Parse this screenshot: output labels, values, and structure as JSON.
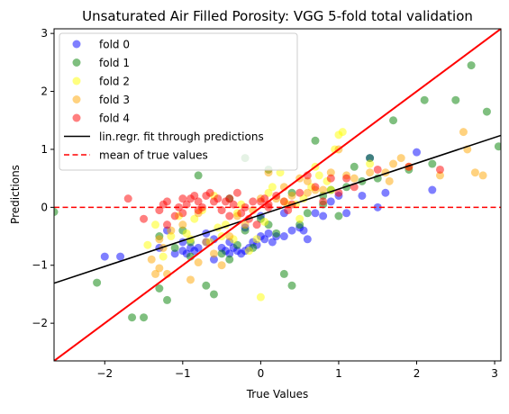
{
  "chart_data": {
    "type": "scatter",
    "title": "Unsaturated Air Filled Porosity: VGG 5-fold total validation",
    "xlabel": "True Values",
    "ylabel": "Predictions",
    "xlim": [
      -2.65,
      3.08
    ],
    "ylim": [
      -2.65,
      3.08
    ],
    "xticks": [
      -2,
      -1,
      0,
      1,
      2,
      3
    ],
    "yticks": [
      -2,
      -1,
      0,
      1,
      2,
      3
    ],
    "tick_labels": [
      "−2",
      "−1",
      "0",
      "1",
      "2",
      "3"
    ],
    "grid": false,
    "legend_placement": "top-left",
    "series": [
      {
        "name": "fold 0",
        "color": "#0000ff",
        "x": [
          -2.0,
          -1.8,
          -1.3,
          -1.2,
          -1.1,
          -1.0,
          -0.95,
          -0.9,
          -0.85,
          -0.8,
          -0.7,
          -0.6,
          -0.5,
          -0.45,
          -0.4,
          -0.35,
          -0.3,
          -0.25,
          -0.2,
          -0.15,
          -0.1,
          -0.05,
          0.0,
          0.05,
          0.1,
          0.15,
          0.2,
          0.3,
          0.4,
          0.5,
          0.55,
          0.6,
          0.7,
          0.8,
          0.9,
          1.0,
          1.1,
          1.3,
          1.4,
          1.5,
          1.6,
          2.0,
          2.2,
          -0.6,
          -0.4,
          -0.2,
          0.3,
          -0.7,
          0.0,
          -1.0
        ],
        "y": [
          -0.85,
          -0.85,
          -0.7,
          -0.4,
          -0.8,
          -0.75,
          -0.8,
          -0.7,
          -0.75,
          -0.7,
          -0.6,
          -0.55,
          -0.7,
          -0.75,
          -0.6,
          -0.7,
          -0.75,
          -0.8,
          -0.75,
          -0.7,
          -0.6,
          -0.65,
          -0.5,
          -0.55,
          -0.45,
          -0.6,
          -0.5,
          -0.5,
          -0.4,
          -0.35,
          -0.4,
          -0.55,
          -0.1,
          -0.15,
          0.1,
          0.2,
          -0.1,
          0.2,
          0.85,
          0.0,
          0.25,
          0.95,
          0.3,
          -0.9,
          -0.8,
          -0.35,
          -0.1,
          -0.45,
          -0.15,
          -0.6
        ]
      },
      {
        "name": "fold 1",
        "color": "#008000",
        "x": [
          -2.65,
          -2.1,
          -1.65,
          -1.5,
          -1.3,
          -1.2,
          -1.1,
          -1.0,
          -0.9,
          -0.8,
          -0.7,
          -0.6,
          -0.5,
          -0.4,
          -0.3,
          -0.2,
          -0.1,
          0.0,
          0.1,
          0.2,
          0.3,
          0.4,
          0.5,
          0.6,
          0.7,
          0.8,
          0.9,
          1.0,
          1.1,
          1.2,
          1.4,
          1.5,
          1.7,
          1.9,
          2.1,
          2.2,
          2.5,
          2.7,
          2.9,
          3.05,
          -0.4,
          0.4,
          -1.3,
          0.1,
          -0.9,
          0.8,
          -0.2,
          1.3
        ],
        "y": [
          -0.08,
          -1.3,
          -1.9,
          -1.9,
          -1.4,
          -1.6,
          -0.7,
          -0.4,
          -0.85,
          0.55,
          -1.35,
          -1.5,
          -0.8,
          -0.9,
          -0.65,
          -0.4,
          -0.7,
          -0.2,
          -0.3,
          -0.45,
          -1.15,
          -1.35,
          -0.3,
          -0.1,
          1.15,
          0.05,
          0.3,
          -0.15,
          0.35,
          0.7,
          0.85,
          0.5,
          1.5,
          0.65,
          1.85,
          0.75,
          1.85,
          2.45,
          1.65,
          1.05,
          0.15,
          0.25,
          -0.5,
          0.65,
          -0.6,
          0.2,
          0.85,
          0.45
        ]
      },
      {
        "name": "fold 2",
        "color": "#ffff00",
        "x": [
          -1.45,
          -1.35,
          -1.25,
          -1.15,
          -1.05,
          -0.95,
          -0.85,
          -0.75,
          -0.65,
          -0.55,
          -0.45,
          -0.35,
          -0.25,
          -0.15,
          -0.05,
          0.0,
          0.05,
          0.15,
          0.25,
          0.35,
          0.45,
          0.55,
          0.65,
          0.75,
          0.85,
          0.95,
          1.0,
          1.05,
          -0.6,
          -0.3,
          0.3,
          0.5,
          -0.9,
          0.1,
          0.7,
          -0.5,
          0.9,
          1.4
        ],
        "y": [
          -0.65,
          -0.3,
          -0.85,
          -0.5,
          -0.15,
          -0.45,
          -0.2,
          -0.05,
          -0.6,
          -0.35,
          -0.3,
          -0.55,
          0.05,
          -0.75,
          -0.55,
          -1.55,
          -0.25,
          0.35,
          0.6,
          0.05,
          0.05,
          0.15,
          0.35,
          0.55,
          0.45,
          1.0,
          1.25,
          1.3,
          0.2,
          -0.1,
          0.1,
          -0.2,
          -0.55,
          0.25,
          0.7,
          -0.5,
          0.3,
          0.75
        ]
      },
      {
        "name": "fold 3",
        "color": "#ffa500",
        "x": [
          -1.4,
          -1.35,
          -1.3,
          -1.25,
          -1.2,
          -1.15,
          -1.0,
          -0.9,
          -0.8,
          -0.7,
          -0.6,
          -0.5,
          -0.4,
          -0.3,
          -0.2,
          -0.1,
          0.0,
          0.1,
          0.2,
          0.3,
          0.4,
          0.5,
          0.6,
          0.7,
          0.8,
          0.9,
          1.0,
          1.1,
          1.2,
          1.4,
          1.6,
          1.65,
          1.8,
          1.9,
          2.3,
          2.6,
          2.65,
          2.75,
          2.85,
          -1.3,
          -0.8,
          0.6,
          1.7
        ],
        "y": [
          -0.9,
          -1.15,
          -1.05,
          -0.7,
          -1.15,
          -0.4,
          -0.3,
          -1.25,
          -0.95,
          -0.6,
          -0.8,
          -1.0,
          -0.5,
          -0.15,
          -0.3,
          -0.05,
          0.15,
          0.6,
          0.15,
          0.35,
          0.2,
          0.5,
          0.45,
          0.3,
          0.3,
          0.6,
          1.0,
          0.55,
          0.5,
          0.6,
          0.6,
          0.45,
          0.85,
          0.7,
          0.55,
          1.3,
          1.0,
          0.6,
          0.55,
          -0.55,
          -0.1,
          0.25,
          0.75
        ]
      },
      {
        "name": "fold 4",
        "color": "#ff0000",
        "x": [
          -1.7,
          -1.5,
          -1.3,
          -1.25,
          -1.2,
          -1.1,
          -1.05,
          -1.0,
          -0.95,
          -0.9,
          -0.85,
          -0.8,
          -0.75,
          -0.7,
          -0.65,
          -0.6,
          -0.55,
          -0.5,
          -0.45,
          -0.4,
          -0.35,
          -0.3,
          -0.25,
          -0.2,
          -0.15,
          -0.1,
          -0.05,
          0.0,
          0.05,
          0.1,
          0.2,
          0.3,
          0.4,
          0.5,
          0.6,
          0.7,
          0.8,
          0.9,
          1.0,
          1.1,
          1.2,
          1.5,
          1.9,
          2.3,
          -1.2,
          -0.8,
          -0.4,
          0.1,
          -1.0,
          0.35
        ],
        "y": [
          0.15,
          -0.2,
          -0.05,
          0.05,
          0.1,
          -0.15,
          0.0,
          0.15,
          0.05,
          0.15,
          0.2,
          -0.05,
          0.0,
          0.2,
          0.25,
          0.1,
          0.15,
          -0.05,
          0.1,
          0.15,
          0.05,
          0.25,
          -0.1,
          0.0,
          -0.2,
          0.1,
          -0.3,
          0.1,
          0.15,
          0.0,
          0.2,
          0.1,
          0.05,
          0.25,
          0.55,
          0.35,
          0.1,
          0.5,
          0.25,
          0.5,
          0.35,
          0.65,
          0.7,
          0.65,
          -0.3,
          0.1,
          -0.15,
          0.05,
          -0.1,
          -0.05
        ]
      }
    ],
    "fit_line": {
      "name": "lin.regr. fit through predictions",
      "color": "#000000",
      "slope": 0.445,
      "intercept": -0.13
    },
    "identity_line": {
      "color": "#ff0000"
    },
    "mean_line": {
      "name": "mean of true values",
      "color": "#ff0000",
      "y": 0.0
    }
  }
}
